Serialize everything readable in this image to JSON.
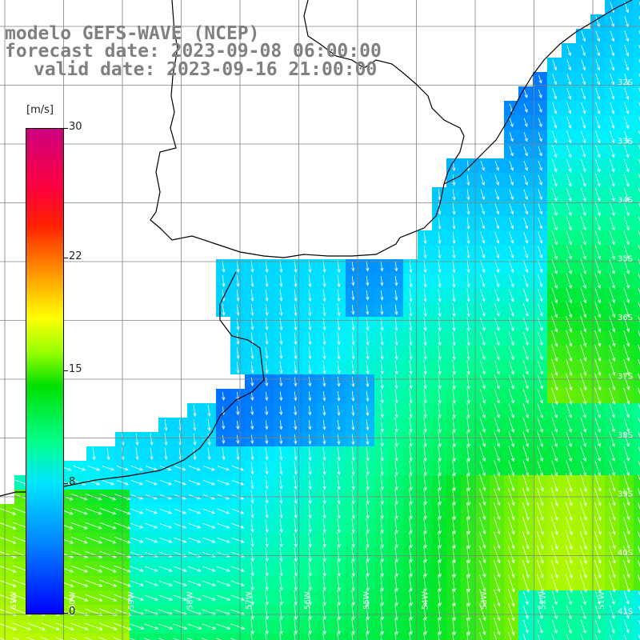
{
  "header": {
    "line1": "modelo GEFS-WAVE (NCEP)",
    "line2": "forecast date: 2023-09-08 06:00:00",
    "line3": "valid date: 2023-09-16 21:00:00"
  },
  "legend": {
    "unit": "[m/s]",
    "ticks": [
      {
        "label": "30",
        "value": 30
      },
      {
        "label": "22",
        "value": 22
      },
      {
        "label": "15",
        "value": 15
      },
      {
        "label": "8",
        "value": 8
      },
      {
        "label": "0",
        "value": 0
      }
    ],
    "colors": [
      "#0000ff",
      "#0080ff",
      "#00e6ff",
      "#00ff90",
      "#00e000",
      "#9aff00",
      "#ffff00",
      "#ff9900",
      "#ff2200",
      "#cc0080"
    ]
  },
  "lat_labels": [
    "32S",
    "33S",
    "34S",
    "35S",
    "36S",
    "37S",
    "38S",
    "39S",
    "40S",
    "41S"
  ],
  "lon_labels": [
    "61W",
    "60W",
    "59W",
    "58W",
    "57W",
    "56W",
    "55W",
    "54W",
    "53W",
    "52W",
    "51W"
  ],
  "colors": {
    "land": "#ffffff",
    "grid": "#808080",
    "coast": "#000000",
    "arrow": "#ffffff"
  }
}
